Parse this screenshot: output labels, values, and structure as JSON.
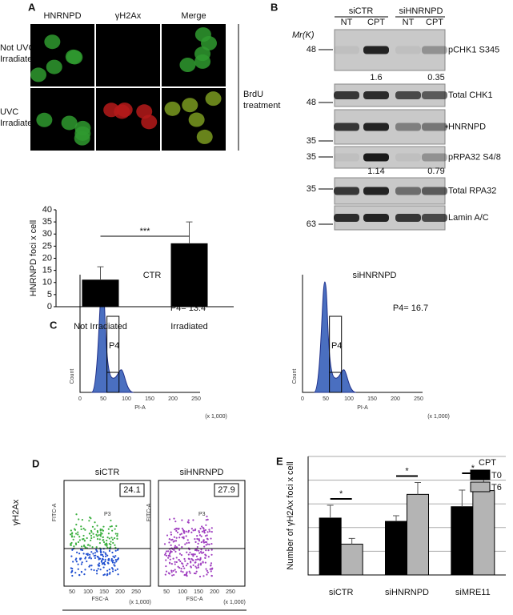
{
  "panel_a": {
    "label": "A",
    "columns": [
      "HNRNPD",
      "γH2Ax",
      "Merge"
    ],
    "rows": [
      [
        "Not UVC",
        "Irradiated"
      ],
      [
        "UVC",
        "Irradiated"
      ]
    ],
    "side_label": [
      "BrdU",
      "treatment"
    ]
  },
  "panel_b": {
    "label": "B",
    "mr": "Mr(K)",
    "groups": [
      "siCTR",
      "siHNRNPD"
    ],
    "lanes": [
      "NT",
      "CPT",
      "NT",
      "CPT"
    ],
    "blots": [
      {
        "name": "pCHK1 S345",
        "marker": 48,
        "quant": [
          1.6,
          0.35
        ]
      },
      {
        "name": "Total CHK1",
        "marker": 48
      },
      {
        "name": "HNRNPD",
        "marker": 35,
        "note": "*"
      },
      {
        "name": "pRPA32 S4/8",
        "marker": 35,
        "quant": [
          1.14,
          0.79
        ]
      },
      {
        "name": "Total RPA32",
        "marker": 35
      },
      {
        "name": "Lamin A/C",
        "marker": 63
      }
    ]
  },
  "panel_c": {
    "label": "C",
    "ylabel": "Count",
    "xlabel": "PI-A",
    "xunit": "(x 1,000)",
    "xticks": [
      0,
      50,
      100,
      150,
      200,
      250
    ],
    "plots": [
      {
        "title": "CTR",
        "gate": "P4",
        "annotation": "P4= 13.4"
      },
      {
        "title": "siHNRNPD",
        "gate": "P4",
        "annotation": "P4= 16.7"
      }
    ]
  },
  "panel_d": {
    "label": "D",
    "ylabel": "γH2Ax",
    "plot_ylabel": "FITC-A",
    "plot_xlabel": "FSC-A",
    "xunit": "(x 1,000)",
    "xticks": [
      50,
      100,
      150,
      200,
      250
    ],
    "plots": [
      {
        "title": "siCTR",
        "gate": "P3",
        "percent": 24.1
      },
      {
        "title": "siHNRNPD",
        "gate": "P3",
        "percent": 27.9
      }
    ]
  },
  "panel_e": {
    "label": "E"
  },
  "chart_data": [
    {
      "type": "bar",
      "ylabel": "HNRNPD foci x cell",
      "categories": [
        "Not Irradiated",
        "Irradiated"
      ],
      "values": [
        11,
        26
      ],
      "errors": [
        5.5,
        9
      ],
      "color": "#000000",
      "ylim": [
        0,
        40
      ],
      "yticks": [
        0,
        5,
        10,
        15,
        20,
        25,
        30,
        35,
        40
      ],
      "annotation": "***"
    },
    {
      "type": "bar",
      "ylabel": "Number of γH2Ax foci x cell",
      "legend_title": "CPT",
      "categories": [
        "siCTR",
        "siHNRNPD",
        "siMRE11"
      ],
      "series": [
        {
          "name": "T0",
          "color": "#000000",
          "values": [
            12,
            11.3,
            14.4
          ],
          "errors": [
            2.7,
            1.2,
            3.5
          ]
        },
        {
          "name": "T6",
          "color": "#b4b4b4",
          "values": [
            6.5,
            17,
            17.8
          ],
          "errors": [
            1.2,
            2.5,
            2.3
          ]
        }
      ],
      "ylim": [
        0,
        25
      ],
      "yticks": [
        0,
        5,
        10,
        15,
        20,
        25
      ],
      "grid": true,
      "annotations": [
        "*",
        "*",
        "*"
      ]
    }
  ]
}
